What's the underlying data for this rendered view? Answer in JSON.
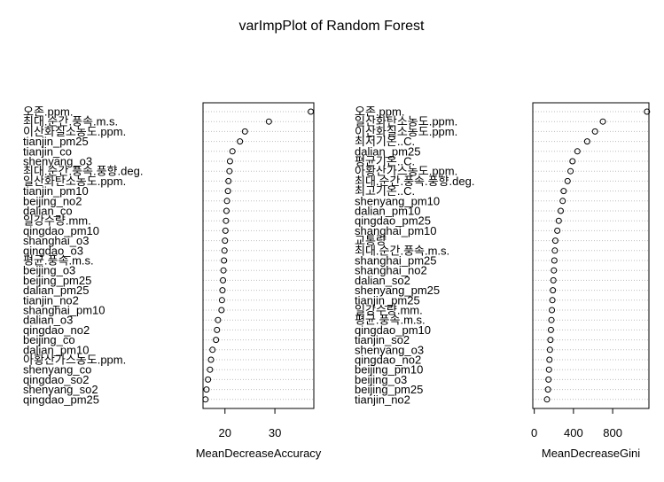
{
  "chart_data": {
    "title": "varImpPlot of Random Forest",
    "type": "dotchart",
    "panels": [
      {
        "xlabel": "MeanDecreaseAccuracy",
        "xlim": [
          15.6,
          37.8
        ],
        "ticks": [
          20,
          30
        ],
        "labels": [
          "오존.ppm.",
          "최대.순간.풍속.m.s.",
          "이산화질소농도.ppm.",
          "tianjin_pm25",
          "tianjin_co",
          "shenyang_o3",
          "최대.순간.풍속.풍향.deg.",
          "일산화탄소농도.ppm.",
          "tianjin_pm10",
          "beijing_no2",
          "dalian_co",
          "일강수량.mm.",
          "qingdao_pm10",
          "shanghai_o3",
          "qingdao_o3",
          "평균.풍속.m.s.",
          "beijing_o3",
          "beijing_pm25",
          "dalian_pm25",
          "tianjin_no2",
          "shanghai_pm10",
          "dalian_o3",
          "qingdao_no2",
          "beijing_co",
          "dalian_pm10",
          "아황산가스농도.ppm.",
          "shenyang_co",
          "qingdao_so2",
          "shenyang_so2",
          "qingdao_pm25"
        ],
        "values": [
          37.2,
          28.8,
          24.0,
          23.0,
          21.5,
          21.0,
          20.9,
          20.7,
          20.6,
          20.4,
          20.3,
          20.2,
          20.1,
          20.0,
          19.9,
          19.8,
          19.7,
          19.6,
          19.5,
          19.4,
          19.3,
          18.6,
          18.4,
          18.2,
          17.5,
          17.2,
          17.0,
          16.6,
          16.3,
          16.1
        ]
      },
      {
        "xlabel": "MeanDecreaseGini",
        "xlim": [
          -15,
          1170
        ],
        "ticks": [
          0,
          400,
          800
        ],
        "labels": [
          "오존.ppm.",
          "일산화탄소농도.ppm.",
          "이산화질소농도.ppm.",
          "최저기온..C.",
          "dalian_pm25",
          "평균기온..C.",
          "아황산가스농도.ppm.",
          "최대.순간.풍속.풍향.deg.",
          "최고기온..C.",
          "shenyang_pm10",
          "dalian_pm10",
          "qingdao_pm25",
          "shanghai_pm10",
          "교통량",
          "최대.순간.풍속.m.s.",
          "shanghai_pm25",
          "shanghai_no2",
          "dalian_so2",
          "shenyang_pm25",
          "tianjin_pm25",
          "일강수량.mm.",
          "평균.풍속.m.s.",
          "qingdao_pm10",
          "tianjin_so2",
          "shenyang_o3",
          "qingdao_no2",
          "beijing_pm10",
          "beijing_o3",
          "beijing_pm25",
          "tianjin_no2"
        ],
        "values": [
          1150,
          700,
          620,
          540,
          440,
          390,
          370,
          340,
          300,
          290,
          270,
          250,
          235,
          215,
          210,
          205,
          200,
          195,
          190,
          185,
          180,
          175,
          170,
          165,
          160,
          155,
          150,
          145,
          140,
          130
        ]
      }
    ]
  }
}
